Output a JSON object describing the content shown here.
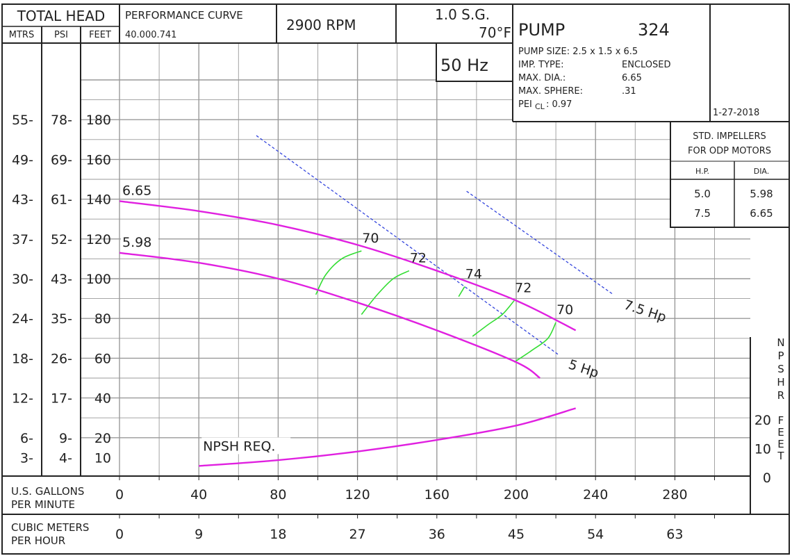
{
  "header": {
    "total_head": "TOTAL HEAD",
    "col_mtrs": "MTRS",
    "col_psi": "PSI",
    "col_feet": "FEET",
    "performance_curve": "PERFORMANCE  CURVE",
    "curve_number": "40.000.741",
    "rpm": "2900  RPM",
    "sg": "1.0 S.G.",
    "temp": "70°F",
    "hz": "50 Hz",
    "pump_label": "PUMP",
    "pump_number": "324",
    "pump_size": "PUMP SIZE: 2.5 x 1.5 x 6.5",
    "imp_type_label": "IMP. TYPE:",
    "imp_type_value": "ENCLOSED",
    "max_dia_label": "MAX. DIA.:",
    "max_dia_value": "6.65",
    "max_sphere_label": "MAX. SPHERE:",
    "max_sphere_value": ".31",
    "pei_label": "PEI",
    "pei_sub": "CL",
    "pei_value": ":  0.97",
    "date": "1-27-2018"
  },
  "impeller_table": {
    "title_1": "STD.  IMPELLERS",
    "title_2": "FOR ODP MOTORS",
    "col_hp": "H.P.",
    "col_dia": "DIA.",
    "rows": [
      {
        "hp": "5.0",
        "dia": "5.98"
      },
      {
        "hp": "7.5",
        "dia": "6.65"
      }
    ]
  },
  "axes": {
    "mtrs_ticks": [
      "55",
      "49",
      "43",
      "37",
      "30",
      "24",
      "18",
      "12",
      "6",
      "3"
    ],
    "psi_ticks": [
      "78",
      "69",
      "61",
      "52",
      "43",
      "35",
      "26",
      "17",
      "9",
      "4"
    ],
    "feet_ticks": [
      "180",
      "160",
      "140",
      "120",
      "100",
      "80",
      "60",
      "40",
      "20",
      "10"
    ],
    "gpm_label_1": "U.S.  GALLONS",
    "gpm_label_2": "PER  MINUTE",
    "gpm_ticks": [
      "0",
      "40",
      "80",
      "120",
      "160",
      "200",
      "240",
      "280"
    ],
    "m3h_label_1": "CUBIC METERS",
    "m3h_label_2": "PER  HOUR",
    "m3h_ticks": [
      "0",
      "9",
      "18",
      "27",
      "36",
      "45",
      "54",
      "63"
    ],
    "npshr_letters": [
      "N",
      "P",
      "S",
      "H",
      "R",
      "F",
      "E",
      "E",
      "T"
    ],
    "npshr_ticks": [
      "20",
      "10",
      "0"
    ]
  },
  "colors": {
    "head_curve": "#e020e0",
    "efficiency": "#33dd33",
    "power": "#3344dd",
    "grid": "#999999",
    "frame": "#222222"
  },
  "chart_data": {
    "type": "line",
    "x_unit": "U.S. gallons per minute",
    "y_unit": "feet",
    "xlim": [
      0,
      320
    ],
    "ylim": [
      0,
      200
    ],
    "npsh_ylim": [
      0,
      40
    ],
    "grid": true,
    "head_curves": [
      {
        "name": "6.65",
        "x": [
          0,
          40,
          80,
          120,
          160,
          200,
          230
        ],
        "y": [
          139,
          134,
          127,
          117,
          104,
          89,
          74
        ]
      },
      {
        "name": "5.98",
        "x": [
          0,
          40,
          80,
          120,
          160,
          200,
          212
        ],
        "y": [
          113,
          108,
          100,
          88,
          74,
          58,
          50
        ]
      }
    ],
    "efficiency_lines": [
      {
        "name": "70",
        "x": [
          99,
          104,
          112,
          122
        ],
        "y": [
          92,
          102,
          110,
          114
        ]
      },
      {
        "name": "72",
        "x": [
          122,
          130,
          138,
          146
        ],
        "y": [
          82,
          92,
          100,
          104
        ]
      },
      {
        "name": "74",
        "x": [
          171,
          174
        ],
        "y": [
          91,
          96
        ]
      },
      {
        "name": "72",
        "x": [
          178,
          186,
          193,
          199
        ],
        "y": [
          71,
          77,
          82,
          89
        ]
      },
      {
        "name": "70",
        "x": [
          199,
          208,
          216,
          220
        ],
        "y": [
          58,
          64,
          70,
          78
        ]
      }
    ],
    "power_lines": [
      {
        "name": "5 Hp",
        "x": [
          69,
          221
        ],
        "y": [
          172,
          62
        ]
      },
      {
        "name": "7.5 Hp",
        "x": [
          175,
          249
        ],
        "y": [
          144,
          92
        ]
      }
    ],
    "npshr": {
      "name": "NPSH REQ.",
      "x": [
        40,
        80,
        120,
        160,
        200,
        230
      ],
      "y": [
        4,
        6,
        9,
        13,
        18,
        24
      ]
    }
  }
}
